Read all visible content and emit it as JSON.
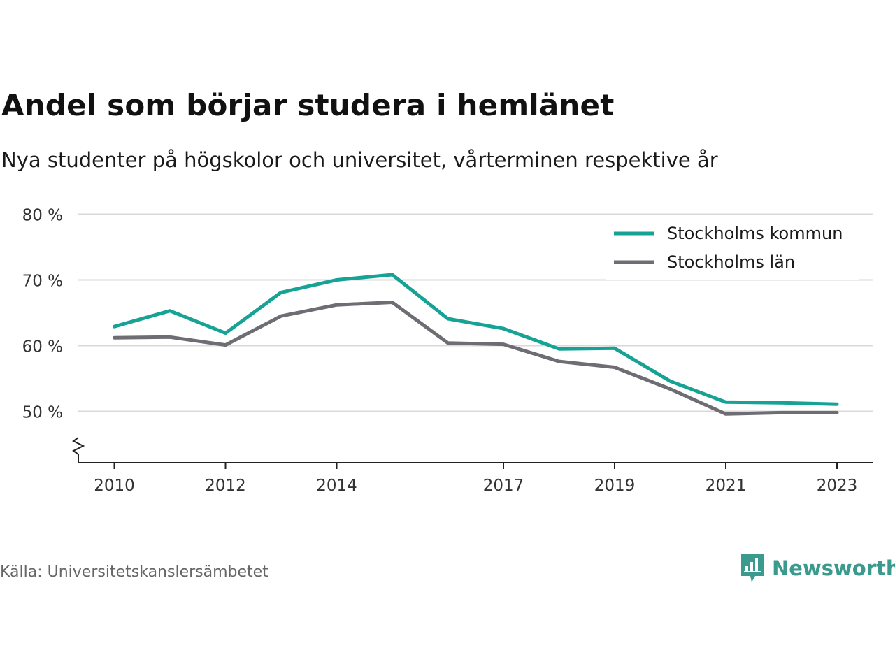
{
  "header": {
    "title": "Andel som börjar studera i hemlänet",
    "subtitle": "Nya studenter på högskolor och universitet, vårterminen respektive år"
  },
  "footer": {
    "source": "Källa: Universitetskanslersämbetet",
    "brand": "Newsworthy",
    "brand_icon": "newsworthy-logo-icon"
  },
  "colors": {
    "series_1": "#16a395",
    "series_2": "#6d6d73",
    "grid": "#d9d9d9",
    "axis": "#222222",
    "brand": "#3a9a8e"
  },
  "chart_data": {
    "type": "line",
    "title": "Andel som börjar studera i hemlänet",
    "subtitle": "Nya studenter på högskolor och universitet, vårterminen respektive år",
    "x": [
      2010,
      2011,
      2012,
      2013,
      2014,
      2015,
      2016,
      2017,
      2018,
      2019,
      2020,
      2021,
      2022,
      2023
    ],
    "x_ticks": [
      2010,
      2012,
      2014,
      2017,
      2019,
      2021,
      2023
    ],
    "y_ticks": [
      50,
      60,
      70,
      80
    ],
    "y_tick_labels": [
      "50 %",
      "60 %",
      "70 %",
      "80 %"
    ],
    "ylim": [
      42,
      80
    ],
    "xlim": [
      2009.35,
      2023.7
    ],
    "axis_break": true,
    "grid": true,
    "legend": "top-right",
    "series": [
      {
        "name": "Stockholms kommun",
        "color": "#16a395",
        "values": [
          62.9,
          65.3,
          61.9,
          68.1,
          70.0,
          70.8,
          64.1,
          62.6,
          59.5,
          59.6,
          54.6,
          51.4,
          51.3,
          51.1
        ]
      },
      {
        "name": "Stockholms län",
        "color": "#6d6d73",
        "values": [
          61.2,
          61.3,
          60.1,
          64.5,
          66.2,
          66.6,
          60.4,
          60.2,
          57.6,
          56.7,
          53.4,
          49.6,
          49.8,
          49.8
        ]
      }
    ]
  }
}
